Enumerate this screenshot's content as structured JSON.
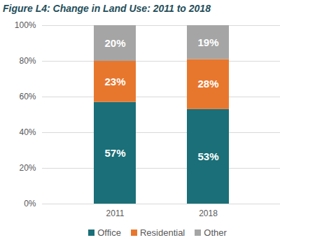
{
  "chart_data": {
    "type": "bar",
    "title": "Figure L4:  Change in Land Use: 2011 to 2018",
    "categories": [
      "2011",
      "2018"
    ],
    "series": [
      {
        "name": "Office",
        "color": "#1a6f78",
        "values": [
          57,
          53
        ],
        "value_labels": [
          "57%",
          "53%"
        ]
      },
      {
        "name": "Residential",
        "color": "#e8772e",
        "values": [
          23,
          28
        ],
        "value_labels": [
          "23%",
          "28%"
        ]
      },
      {
        "name": "Other",
        "color": "#a5a5a5",
        "values": [
          20,
          19
        ],
        "value_labels": [
          "20%",
          "19%"
        ]
      }
    ],
    "stacked": true,
    "data_labels": true,
    "ylim": [
      0,
      100
    ],
    "yticks": [
      {
        "value": 0,
        "label": "0%"
      },
      {
        "value": 20,
        "label": "20%"
      },
      {
        "value": 40,
        "label": "40%"
      },
      {
        "value": 60,
        "label": "60%"
      },
      {
        "value": 80,
        "label": "80%"
      },
      {
        "value": 100,
        "label": "100%"
      }
    ],
    "grid": true,
    "legend": "bottom"
  }
}
